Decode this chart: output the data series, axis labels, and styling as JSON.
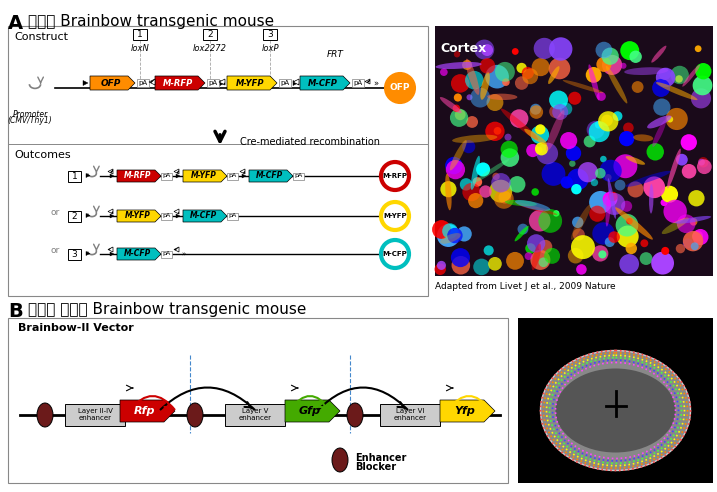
{
  "title_A": "기존의 Brainbow transgenic mouse",
  "title_B": "새로운 개념의 Brainbow transgenic mouse",
  "label_A": "A",
  "label_B": "B",
  "panel_A_left": {
    "construct_label": "Construct",
    "outcomes_label": "Outcomes",
    "promoter_label": "Promoter\n(CMV/Thy1)",
    "lox_labels": [
      "loxN",
      "lox2272",
      "loxP"
    ],
    "lox_numbers": [
      "1",
      "2",
      "3"
    ],
    "construct_genes": [
      "OFP",
      "M-RFP",
      "M-YFP",
      "M-CFP"
    ],
    "construct_colors": [
      "#FF8C00",
      "#CC0000",
      "#FFD700",
      "#00BFBF"
    ],
    "outcome1_genes": [
      "M-RFP",
      "M-YFP",
      "M-CFP"
    ],
    "outcome1_colors": [
      "#CC0000",
      "#FFD700",
      "#00BFBF"
    ],
    "outcome2_genes": [
      "M-YFP",
      "M-CFP"
    ],
    "outcome2_colors": [
      "#FFD700",
      "#00BFBF"
    ],
    "outcome3_genes": [
      "M-CFP"
    ],
    "outcome3_colors": [
      "#00BFBF"
    ],
    "frt_label": "FRT",
    "arrow_label": "Cre-mediated recombination",
    "ofp_circle_color": "#FF8C00",
    "mrfp_circle_color": "#CC0000",
    "myfp_circle_color": "#FFD700",
    "mcfp_circle_color": "#00BFBF"
  },
  "panel_B_left": {
    "title": "Brainbow-II Vector",
    "genes": [
      "Rfp",
      "Gfp",
      "Yfp"
    ],
    "gene_colors": [
      "#CC0000",
      "#44AA00",
      "#FFD700"
    ],
    "enhancers": [
      "Layer II-IV\nenhancer",
      "Layer V\nenhancer",
      "Layer VI\nenhancer"
    ],
    "blocker_label": "Enhancer\nBlocker",
    "blocker_color": "#6B1A1A",
    "arc_colors": [
      "#CC0000",
      "#000000",
      "#000000",
      "#44AA00",
      "#000000",
      "#FFD700"
    ]
  },
  "panel_A_right_label": "Cortex",
  "adapted_text": "Adapted from Livet J et al., 2009 Nature",
  "bg_color": "#FFFFFF",
  "box_edge_color": "#888888",
  "text_color": "#000000"
}
